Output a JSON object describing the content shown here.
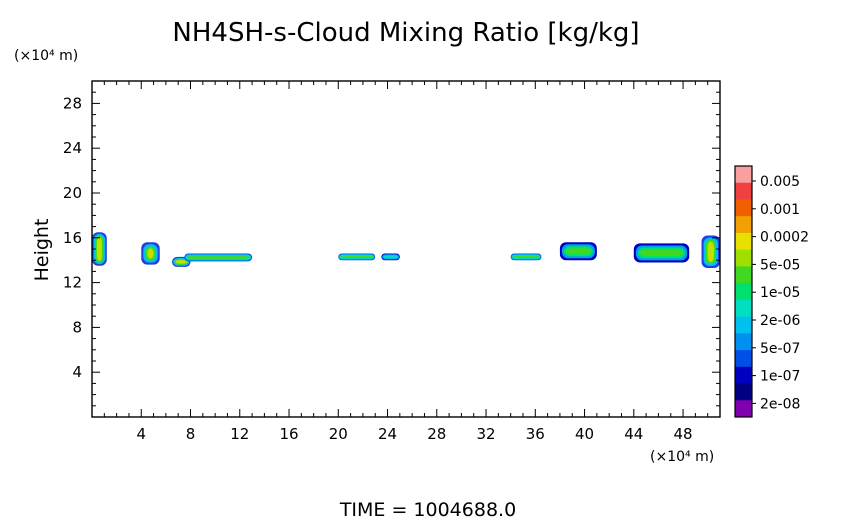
{
  "chart_data": {
    "type": "heatmap",
    "title": "NH4SH-s-Cloud Mixing Ratio [kg/kg]",
    "xlabel": "",
    "x_unit": "(×10⁴ m)",
    "ylabel": "Height",
    "y_unit": "(×10⁴ m)",
    "xlim": [
      0,
      51
    ],
    "ylim": [
      0,
      30
    ],
    "x_ticks": [
      4,
      8,
      12,
      16,
      20,
      24,
      28,
      32,
      36,
      40,
      44,
      48
    ],
    "y_ticks": [
      4,
      8,
      12,
      16,
      20,
      24,
      28
    ],
    "colorbar": {
      "labels": [
        "0.005",
        "0.001",
        "0.0002",
        "5e-05",
        "1e-05",
        "2e-06",
        "5e-07",
        "1e-07",
        "2e-08"
      ],
      "colors": [
        "#f8a0a0",
        "#f04040",
        "#f06000",
        "#f0a000",
        "#e8e000",
        "#a0e000",
        "#40d820",
        "#00e070",
        "#00e0c0",
        "#00c0f0",
        "#0090f0",
        "#0050e8",
        "#0000c0",
        "#000080",
        "#8000b0"
      ]
    },
    "cloud_patches": [
      {
        "x": [
          0.0,
          1.2
        ],
        "y": [
          13.5,
          16.5
        ],
        "level": "5e-05"
      },
      {
        "x": [
          4.0,
          5.5
        ],
        "y": [
          13.6,
          15.6
        ],
        "level": "5e-05"
      },
      {
        "x": [
          6.5,
          8.0
        ],
        "y": [
          13.4,
          14.3
        ],
        "level": "5e-05"
      },
      {
        "x": [
          7.5,
          13.0
        ],
        "y": [
          13.9,
          14.6
        ],
        "level": "2e-06"
      },
      {
        "x": [
          20.0,
          23.0
        ],
        "y": [
          14.0,
          14.6
        ],
        "level": "2e-06"
      },
      {
        "x": [
          23.5,
          25.0
        ],
        "y": [
          14.0,
          14.6
        ],
        "level": "5e-07"
      },
      {
        "x": [
          34.0,
          36.5
        ],
        "y": [
          14.0,
          14.6
        ],
        "level": "2e-06"
      },
      {
        "x": [
          38.0,
          41.0
        ],
        "y": [
          14.0,
          15.6
        ],
        "level": "1e-05"
      },
      {
        "x": [
          44.0,
          48.5
        ],
        "y": [
          13.8,
          15.5
        ],
        "level": "1e-05"
      },
      {
        "x": [
          49.5,
          51.0
        ],
        "y": [
          13.3,
          16.2
        ],
        "level": "5e-05"
      }
    ],
    "footer": "TIME  =  1004688.0"
  }
}
